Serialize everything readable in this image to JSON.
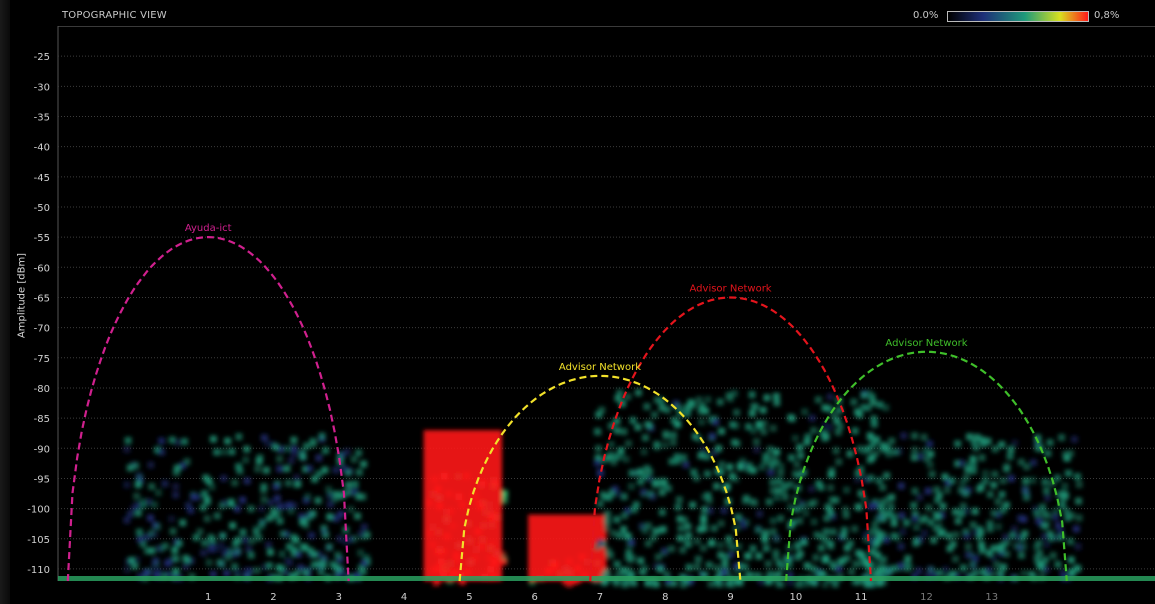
{
  "header": {
    "title": "TOPOGRAPHIC VIEW",
    "scale_min": "0.0%",
    "scale_max": "0,8%"
  },
  "colors": {
    "background": "#000000",
    "grid": "#3c3c3c",
    "heat_low": "#1e2f78",
    "heat_mid": "#1f9a7a",
    "heat_high": "#ff1a1a",
    "series_ayuda": "#d0208e",
    "series_advisor_yellow": "#f2e12a",
    "series_advisor_red": "#e4141c",
    "series_advisor_green": "#3fbf2a"
  },
  "chart_data": {
    "type": "line",
    "title": "",
    "xlabel": "",
    "ylabel": "Amplitude [dBm]",
    "x_ticks": [
      "1",
      "2",
      "3",
      "4",
      "5",
      "6",
      "7",
      "8",
      "9",
      "10",
      "11",
      "12",
      "13"
    ],
    "x_tick_values": [
      1,
      2,
      3,
      4,
      5,
      6,
      7,
      8,
      9,
      10,
      11,
      12,
      13
    ],
    "y_ticks": [
      -25,
      -30,
      -35,
      -40,
      -45,
      -50,
      -55,
      -60,
      -65,
      -70,
      -75,
      -80,
      -85,
      -90,
      -95,
      -100,
      -105,
      -110
    ],
    "xlim": [
      -1.3,
      15.5
    ],
    "ylim": [
      -112,
      -20
    ],
    "grid": true,
    "legend": "none",
    "networks": [
      {
        "name": "Ayuda-ict",
        "channel": 1,
        "peak_dbm": -55,
        "color_key": "series_ayuda"
      },
      {
        "name": "Advisor Network",
        "channel": 7,
        "peak_dbm": -78,
        "color_key": "series_advisor_yellow"
      },
      {
        "name": "Advisor Network",
        "channel": 9,
        "peak_dbm": -65,
        "color_key": "series_advisor_red"
      },
      {
        "name": "Advisor Network",
        "channel": 12,
        "peak_dbm": -74,
        "color_key": "series_advisor_green"
      }
    ],
    "span_channels": 4.3,
    "heat_regions": [
      {
        "x0": -0.3,
        "x1": 3.4,
        "y0": -111,
        "y1": -87,
        "level": 0.35
      },
      {
        "x0": 4.3,
        "x1": 5.5,
        "y0": -112,
        "y1": -93,
        "level": 1.0
      },
      {
        "x0": 5.9,
        "x1": 7.1,
        "y0": -112,
        "y1": -107,
        "level": 0.9
      },
      {
        "x0": 6.9,
        "x1": 11.4,
        "y0": -112,
        "y1": -80,
        "level": 0.45
      },
      {
        "x0": 11.0,
        "x1": 14.3,
        "y0": -111,
        "y1": -87,
        "level": 0.4
      }
    ]
  }
}
